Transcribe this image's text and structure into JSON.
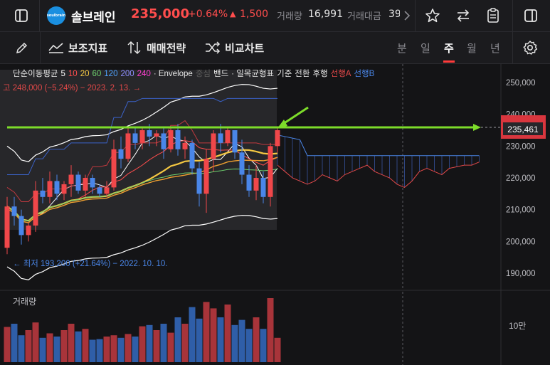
{
  "header": {
    "stock_name": "솔브레인",
    "logo_text": "soulbrain",
    "price": "235,000",
    "change_pct": "+0.64%",
    "change_amount": "1,500",
    "volume_label": "거래량",
    "volume_value": "16,991",
    "trade_value_label": "거래대금",
    "trade_value_value": "39"
  },
  "toolbar": {
    "indicators": "보조지표",
    "strategy": "매매전략",
    "compare": "비교차트",
    "periods": [
      "분",
      "일",
      "주",
      "월",
      "년"
    ],
    "active_period": 2
  },
  "legend": {
    "ma_label": "단순이동평균",
    "ma_periods": [
      "5",
      "10",
      "20",
      "60",
      "120",
      "200",
      "240"
    ],
    "ma_colors": [
      "#ffffff",
      "#ff4d4d",
      "#f5c842",
      "#6fd36f",
      "#4fa3ff",
      "#8f8fff",
      "#ff3fd2"
    ],
    "envelope": "· Envelope",
    "band_center": "중심",
    "band": "밴드",
    "ichimoku": "· 일목균형표",
    "ichimoku_items": [
      "기준",
      "전환",
      "후행"
    ],
    "span_a": "선행A",
    "span_b": "선행B"
  },
  "annotations": {
    "high": "고 248,000 (−5.24%) − 2023. 2. 13. →",
    "low": "← 최저 193,200 (+21.64%) − 2022. 10. 10."
  },
  "price_axis": {
    "ticks": [
      "250,000",
      "240,000",
      "230,000",
      "220,000",
      "210,000",
      "200,000",
      "190,000"
    ],
    "current_price_label": "235,461"
  },
  "volume_panel": {
    "label": "거래량",
    "axis_label": "10만"
  },
  "chart_data": {
    "type": "candlestick",
    "y_range": [
      185000,
      255000
    ],
    "candles": [
      {
        "o": 198000,
        "h": 214000,
        "l": 196000,
        "c": 211000
      },
      {
        "o": 211000,
        "h": 214000,
        "l": 205000,
        "c": 208000
      },
      {
        "o": 208000,
        "h": 210000,
        "l": 199000,
        "c": 202000
      },
      {
        "o": 202000,
        "h": 206000,
        "l": 200000,
        "c": 205000
      },
      {
        "o": 205000,
        "h": 219000,
        "l": 203000,
        "c": 216000
      },
      {
        "o": 216000,
        "h": 220000,
        "l": 212000,
        "c": 214000
      },
      {
        "o": 214000,
        "h": 222000,
        "l": 212000,
        "c": 219000
      },
      {
        "o": 219000,
        "h": 221000,
        "l": 213000,
        "c": 215000
      },
      {
        "o": 215000,
        "h": 219000,
        "l": 213000,
        "c": 218000
      },
      {
        "o": 218000,
        "h": 224000,
        "l": 214000,
        "c": 221000
      },
      {
        "o": 221000,
        "h": 222000,
        "l": 215000,
        "c": 216000
      },
      {
        "o": 216000,
        "h": 221000,
        "l": 214000,
        "c": 220000
      },
      {
        "o": 220000,
        "h": 221000,
        "l": 215000,
        "c": 217000
      },
      {
        "o": 217000,
        "h": 218000,
        "l": 214000,
        "c": 215000
      },
      {
        "o": 215000,
        "h": 219000,
        "l": 214000,
        "c": 217000
      },
      {
        "o": 217000,
        "h": 232000,
        "l": 216000,
        "c": 229000
      },
      {
        "o": 229000,
        "h": 233000,
        "l": 223000,
        "c": 226000
      },
      {
        "o": 226000,
        "h": 236000,
        "l": 225000,
        "c": 234000
      },
      {
        "o": 234000,
        "h": 236000,
        "l": 229000,
        "c": 231000
      },
      {
        "o": 231000,
        "h": 236000,
        "l": 229000,
        "c": 235000
      },
      {
        "o": 235000,
        "h": 237000,
        "l": 230000,
        "c": 233000
      },
      {
        "o": 233000,
        "h": 235000,
        "l": 230000,
        "c": 234000
      },
      {
        "o": 234000,
        "h": 236000,
        "l": 226000,
        "c": 229000
      },
      {
        "o": 229000,
        "h": 236000,
        "l": 228000,
        "c": 235000
      },
      {
        "o": 235000,
        "h": 237000,
        "l": 227000,
        "c": 229000
      },
      {
        "o": 229000,
        "h": 233000,
        "l": 226000,
        "c": 231000
      },
      {
        "o": 231000,
        "h": 232000,
        "l": 221000,
        "c": 223000
      },
      {
        "o": 223000,
        "h": 225000,
        "l": 211000,
        "c": 215000
      },
      {
        "o": 215000,
        "h": 229000,
        "l": 209000,
        "c": 226000
      },
      {
        "o": 226000,
        "h": 235000,
        "l": 222000,
        "c": 234000
      },
      {
        "o": 234000,
        "h": 237000,
        "l": 228000,
        "c": 231000
      },
      {
        "o": 231000,
        "h": 236000,
        "l": 230000,
        "c": 235000
      },
      {
        "o": 235000,
        "h": 235000,
        "l": 226000,
        "c": 228000
      },
      {
        "o": 228000,
        "h": 232000,
        "l": 218000,
        "c": 221000
      },
      {
        "o": 221000,
        "h": 224000,
        "l": 214000,
        "c": 216000
      },
      {
        "o": 216000,
        "h": 224000,
        "l": 213000,
        "c": 220000
      },
      {
        "o": 220000,
        "h": 222000,
        "l": 212000,
        "c": 214000
      },
      {
        "o": 214000,
        "h": 231000,
        "l": 211000,
        "c": 230000
      },
      {
        "o": 230000,
        "h": 236000,
        "l": 228000,
        "c": 235000
      }
    ],
    "volume": [
      0.55,
      0.6,
      0.42,
      0.5,
      0.62,
      0.38,
      0.45,
      0.4,
      0.5,
      0.6,
      0.48,
      0.52,
      0.35,
      0.36,
      0.4,
      0.42,
      0.38,
      0.44,
      0.4,
      0.56,
      0.58,
      0.5,
      0.6,
      0.46,
      0.7,
      0.6,
      0.86,
      0.68,
      0.94,
      0.84,
      0.7,
      0.9,
      0.58,
      0.66,
      0.52,
      0.7,
      0.52,
      1.0,
      0.38
    ],
    "current_price": 235461
  }
}
